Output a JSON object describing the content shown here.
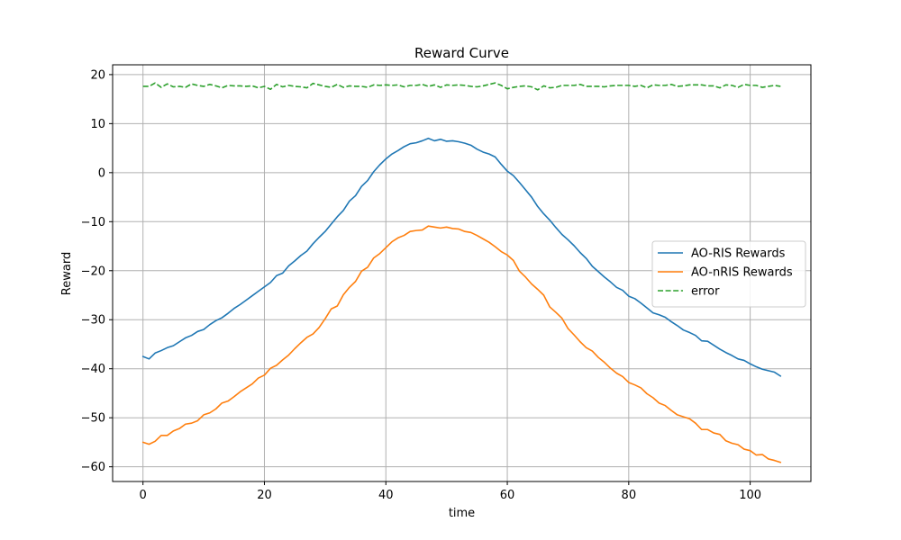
{
  "chart_data": {
    "type": "line",
    "title": "Reward Curve",
    "xlabel": "time",
    "ylabel": "Reward",
    "xlim": [
      -5,
      110
    ],
    "ylim": [
      -63,
      22
    ],
    "xticks": [
      0,
      20,
      40,
      60,
      80,
      100
    ],
    "yticks": [
      -60,
      -50,
      -40,
      -30,
      -20,
      -10,
      0,
      10,
      20
    ],
    "grid": true,
    "legend_position": "center-right",
    "x": [
      0,
      1,
      2,
      3,
      4,
      5,
      6,
      7,
      8,
      9,
      10,
      11,
      12,
      13,
      14,
      15,
      16,
      17,
      18,
      19,
      20,
      21,
      22,
      23,
      24,
      25,
      26,
      27,
      28,
      29,
      30,
      31,
      32,
      33,
      34,
      35,
      36,
      37,
      38,
      39,
      40,
      41,
      42,
      43,
      44,
      45,
      46,
      47,
      48,
      49,
      50,
      51,
      52,
      53,
      54,
      55,
      56,
      57,
      58,
      59,
      60,
      61,
      62,
      63,
      64,
      65,
      66,
      67,
      68,
      69,
      70,
      71,
      72,
      73,
      74,
      75,
      76,
      77,
      78,
      79,
      80,
      81,
      82,
      83,
      84,
      85,
      86,
      87,
      88,
      89,
      90,
      91,
      92,
      93,
      94,
      95,
      96,
      97,
      98,
      99,
      100,
      101,
      102,
      103,
      104,
      105
    ],
    "series": [
      {
        "name": "AO-RIS Rewards",
        "color": "#1f77b4",
        "dash": "solid",
        "values": [
          -37.5,
          -38.0,
          -36.8,
          -36.3,
          -35.7,
          -35.3,
          -34.5,
          -33.7,
          -33.2,
          -32.4,
          -32.0,
          -31.0,
          -30.2,
          -29.6,
          -28.7,
          -27.7,
          -26.9,
          -26.0,
          -25.1,
          -24.2,
          -23.3,
          -22.4,
          -21.0,
          -20.5,
          -19.0,
          -18.0,
          -16.9,
          -16.0,
          -14.5,
          -13.2,
          -12.0,
          -10.5,
          -9.0,
          -7.7,
          -5.8,
          -4.7,
          -2.8,
          -1.6,
          0.2,
          1.6,
          2.8,
          3.8,
          4.5,
          5.3,
          5.9,
          6.1,
          6.5,
          7.0,
          6.5,
          6.8,
          6.4,
          6.5,
          6.3,
          6.0,
          5.6,
          4.8,
          4.2,
          3.8,
          3.2,
          1.7,
          0.3,
          -0.6,
          -2.0,
          -3.5,
          -5.0,
          -6.9,
          -8.4,
          -9.7,
          -11.2,
          -12.6,
          -13.7,
          -14.9,
          -16.3,
          -17.5,
          -19.1,
          -20.2,
          -21.3,
          -22.3,
          -23.4,
          -24.0,
          -25.2,
          -25.7,
          -26.6,
          -27.6,
          -28.6,
          -29.0,
          -29.5,
          -30.4,
          -31.2,
          -32.1,
          -32.6,
          -33.2,
          -34.3,
          -34.4,
          -35.2,
          -36.0,
          -36.7,
          -37.3,
          -38.0,
          -38.3,
          -39.0,
          -39.6,
          -40.1,
          -40.4,
          -40.7,
          -41.5
        ]
      },
      {
        "name": "AO-nRIS Rewards",
        "color": "#ff7f0e",
        "dash": "solid",
        "values": [
          -55.0,
          -55.4,
          -54.8,
          -53.6,
          -53.6,
          -52.7,
          -52.2,
          -51.3,
          -51.1,
          -50.6,
          -49.4,
          -49.0,
          -48.2,
          -47.0,
          -46.6,
          -45.7,
          -44.7,
          -43.9,
          -43.1,
          -41.9,
          -41.3,
          -39.9,
          -39.3,
          -38.2,
          -37.2,
          -35.9,
          -34.7,
          -33.6,
          -32.9,
          -31.6,
          -29.8,
          -27.8,
          -27.2,
          -24.9,
          -23.4,
          -22.2,
          -20.1,
          -19.3,
          -17.4,
          -16.5,
          -15.3,
          -14.1,
          -13.3,
          -12.8,
          -12.0,
          -11.8,
          -11.7,
          -10.9,
          -11.1,
          -11.3,
          -11.1,
          -11.4,
          -11.5,
          -12.0,
          -12.2,
          -12.8,
          -13.5,
          -14.2,
          -15.1,
          -16.1,
          -16.8,
          -17.9,
          -20.1,
          -21.3,
          -22.7,
          -23.8,
          -25.0,
          -27.4,
          -28.5,
          -29.7,
          -31.8,
          -33.1,
          -34.5,
          -35.7,
          -36.4,
          -37.7,
          -38.7,
          -39.9,
          -40.9,
          -41.6,
          -42.8,
          -43.3,
          -43.9,
          -45.1,
          -45.9,
          -47.0,
          -47.5,
          -48.5,
          -49.4,
          -49.8,
          -50.2,
          -51.1,
          -52.4,
          -52.4,
          -53.1,
          -53.4,
          -54.7,
          -55.2,
          -55.5,
          -56.4,
          -56.7,
          -57.6,
          -57.5,
          -58.4,
          -58.7,
          -59.1
        ]
      },
      {
        "name": "error",
        "color": "#2ca02c",
        "dash": "dashed",
        "values": [
          17.6,
          17.6,
          18.3,
          17.4,
          18.1,
          17.5,
          17.6,
          17.4,
          18.1,
          17.8,
          17.6,
          18.0,
          17.7,
          17.3,
          17.8,
          17.7,
          17.7,
          17.6,
          17.7,
          17.3,
          17.6,
          17.0,
          18.0,
          17.5,
          17.8,
          17.6,
          17.5,
          17.3,
          18.2,
          17.9,
          17.6,
          17.4,
          18.0,
          17.4,
          17.7,
          17.6,
          17.6,
          17.4,
          17.9,
          17.8,
          17.9,
          17.8,
          17.9,
          17.5,
          17.8,
          17.8,
          18.0,
          17.6,
          17.9,
          17.4,
          17.9,
          17.8,
          17.9,
          17.8,
          17.6,
          17.5,
          17.7,
          18.0,
          18.3,
          17.8,
          17.1,
          17.4,
          17.6,
          17.7,
          17.5,
          16.9,
          17.7,
          17.3,
          17.4,
          17.8,
          17.8,
          17.8,
          18.0,
          17.6,
          17.6,
          17.6,
          17.5,
          17.7,
          17.8,
          17.8,
          17.8,
          17.6,
          17.8,
          17.3,
          17.9,
          17.8,
          17.8,
          18.0,
          17.6,
          17.7,
          17.9,
          17.9,
          17.9,
          17.7,
          17.7,
          17.3,
          17.9,
          17.8,
          17.4,
          18.0,
          17.8,
          17.8,
          17.4,
          17.6,
          17.8,
          17.6
        ]
      }
    ]
  }
}
